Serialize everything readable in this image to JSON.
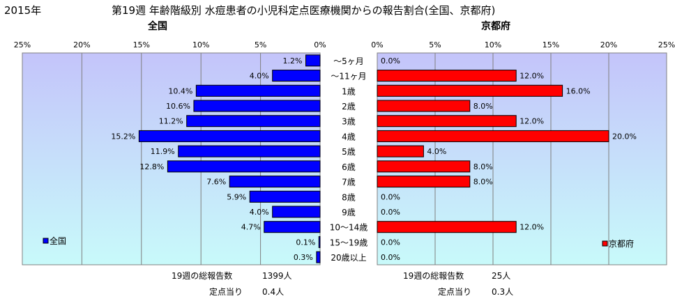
{
  "year": "2015年",
  "title": "第19週 年齢階級別 水痘患者の小児科定点医療機関からの報告割合(全国、京都府)",
  "colors": {
    "national_bar": "#0000ff",
    "kyoto_bar": "#ff0000",
    "plot_top": "#c4c4fa",
    "plot_bottom": "#c8fafa",
    "grid": "#7f7f7f"
  },
  "chart_data": [
    {
      "type": "bar",
      "orientation": "horizontal",
      "direction": "right-to-left",
      "title": "全国",
      "categories": [
        "～5ヶ月",
        "～11ヶ月",
        "1歳",
        "2歳",
        "3歳",
        "4歳",
        "5歳",
        "6歳",
        "7歳",
        "8歳",
        "9歳",
        "10～14歳",
        "15～19歳",
        "20歳以上"
      ],
      "series": [
        {
          "name": "全国",
          "values": [
            1.2,
            4.0,
            10.4,
            10.6,
            11.2,
            15.2,
            11.9,
            12.8,
            7.6,
            5.9,
            4.0,
            4.7,
            0.1,
            0.3
          ]
        }
      ],
      "value_labels": [
        "1.2%",
        "4.0%",
        "10.4%",
        "10.6%",
        "11.2%",
        "15.2%",
        "11.9%",
        "12.8%",
        "7.6%",
        "5.9%",
        "4.0%",
        "4.7%",
        "0.1%",
        "0.3%"
      ],
      "xlim": [
        0,
        25
      ],
      "x_ticks": [
        "25%",
        "20%",
        "15%",
        "10%",
        "5%",
        "0%"
      ],
      "grid": true,
      "legend": "bottom-left"
    },
    {
      "type": "bar",
      "orientation": "horizontal",
      "direction": "left-to-right",
      "title": "京都府",
      "categories": [
        "～5ヶ月",
        "～11ヶ月",
        "1歳",
        "2歳",
        "3歳",
        "4歳",
        "5歳",
        "6歳",
        "7歳",
        "8歳",
        "9歳",
        "10～14歳",
        "15～19歳",
        "20歳以上"
      ],
      "series": [
        {
          "name": "京都府",
          "values": [
            0.0,
            12.0,
            16.0,
            8.0,
            12.0,
            20.0,
            4.0,
            8.0,
            8.0,
            0.0,
            0.0,
            12.0,
            0.0,
            0.0
          ]
        }
      ],
      "value_labels": [
        "0.0%",
        "12.0%",
        "16.0%",
        "8.0%",
        "12.0%",
        "20.0%",
        "4.0%",
        "8.0%",
        "8.0%",
        "0.0%",
        "0.0%",
        "12.0%",
        "0.0%",
        "0.0%"
      ],
      "xlim": [
        0,
        25
      ],
      "x_ticks": [
        "0%",
        "5%",
        "10%",
        "15%",
        "20%",
        "25%"
      ],
      "grid": true,
      "legend": "bottom-right"
    }
  ],
  "summary": {
    "national": {
      "total_label": "19週の総報告数",
      "total_value": "1399人",
      "per_label": "定点当り",
      "per_value": "0.4人"
    },
    "kyoto": {
      "total_label": "19週の総報告数",
      "total_value": "25人",
      "per_label": "定点当り",
      "per_value": "0.3人"
    }
  }
}
